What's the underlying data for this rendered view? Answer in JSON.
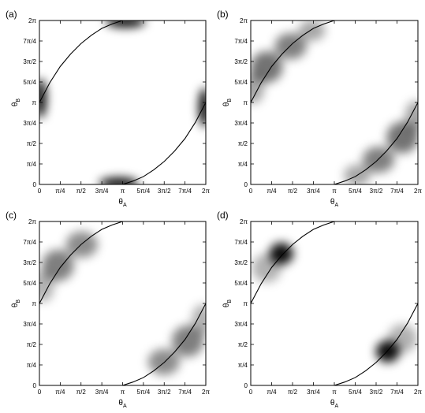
{
  "chart_data": [
    {
      "type": "heatmap",
      "panel_label": "(a)",
      "xlabel": "θA",
      "ylabel": "θB",
      "xlim": [
        0,
        6.2832
      ],
      "ylim": [
        0,
        6.2832
      ],
      "x_ticks": [
        "0",
        "π/4",
        "π/2",
        "3π/4",
        "π",
        "5π/4",
        "3π/2",
        "7π/4",
        "2π"
      ],
      "y_ticks": [
        "0",
        "π/4",
        "π/2",
        "3π/4",
        "π",
        "5π/4",
        "3π/2",
        "7π/4",
        "2π"
      ],
      "curve": {
        "branch_1": {
          "x": [
            0,
            0.3927,
            0.7854,
            1.1781,
            1.5708,
            1.9635,
            2.3562,
            2.7489,
            3.1416
          ],
          "y": [
            3.1416,
            3.9,
            4.52,
            5.0,
            5.4,
            5.72,
            5.98,
            6.15,
            6.2832
          ]
        },
        "branch_2": {
          "x": [
            3.1416,
            3.5343,
            3.927,
            4.3197,
            4.7124,
            5.1051,
            5.4978,
            5.8905,
            6.2832
          ],
          "y": [
            0,
            0.13,
            0.3,
            0.56,
            0.88,
            1.28,
            1.76,
            2.38,
            3.1416
          ]
        }
      },
      "density_peaks": [
        {
          "x": 0.05,
          "y": 3.3,
          "spread_x": 0.22,
          "spread_y": 0.75,
          "intensity": 0.95
        },
        {
          "x": 6.23,
          "y": 2.95,
          "spread_x": 0.22,
          "spread_y": 0.75,
          "intensity": 0.95
        },
        {
          "x": 3.0,
          "y": 0.05,
          "spread_x": 0.75,
          "spread_y": 0.22,
          "intensity": 0.95
        },
        {
          "x": 3.25,
          "y": 6.23,
          "spread_x": 0.75,
          "spread_y": 0.22,
          "intensity": 0.95
        }
      ]
    },
    {
      "type": "heatmap",
      "panel_label": "(b)",
      "xlabel": "θA",
      "ylabel": "θB",
      "xlim": [
        0,
        6.2832
      ],
      "ylim": [
        0,
        6.2832
      ],
      "x_ticks": [
        "0",
        "π/4",
        "π/2",
        "3π/4",
        "π",
        "5π/4",
        "3π/2",
        "7π/4",
        "2π"
      ],
      "y_ticks": [
        "0",
        "π/4",
        "π/2",
        "3π/4",
        "π",
        "5π/4",
        "3π/2",
        "7π/4",
        "2π"
      ],
      "curve": {
        "branch_1": {
          "x": [
            0,
            0.3927,
            0.7854,
            1.1781,
            1.5708,
            1.9635,
            2.3562,
            2.7489,
            3.1416
          ],
          "y": [
            3.1416,
            3.9,
            4.52,
            5.0,
            5.4,
            5.72,
            5.98,
            6.15,
            6.2832
          ]
        },
        "branch_2": {
          "x": [
            3.1416,
            3.5343,
            3.927,
            4.3197,
            4.7124,
            5.1051,
            5.4978,
            5.8905,
            6.2832
          ],
          "y": [
            0,
            0.13,
            0.3,
            0.56,
            0.88,
            1.28,
            1.76,
            2.38,
            3.1416
          ]
        }
      },
      "density_peaks": [
        {
          "x": 0.6,
          "y": 4.5,
          "spread_x": 0.6,
          "spread_y": 0.6,
          "intensity": 0.55
        },
        {
          "x": 1.5,
          "y": 5.3,
          "spread_x": 0.6,
          "spread_y": 0.5,
          "intensity": 0.5
        },
        {
          "x": 2.3,
          "y": 5.9,
          "spread_x": 0.5,
          "spread_y": 0.4,
          "intensity": 0.35
        },
        {
          "x": 0.1,
          "y": 3.7,
          "spread_x": 0.4,
          "spread_y": 0.6,
          "intensity": 0.35
        },
        {
          "x": 5.7,
          "y": 1.8,
          "spread_x": 0.6,
          "spread_y": 0.6,
          "intensity": 0.55
        },
        {
          "x": 4.8,
          "y": 0.95,
          "spread_x": 0.6,
          "spread_y": 0.5,
          "intensity": 0.5
        },
        {
          "x": 4.0,
          "y": 0.35,
          "spread_x": 0.5,
          "spread_y": 0.4,
          "intensity": 0.35
        },
        {
          "x": 6.2,
          "y": 2.6,
          "spread_x": 0.4,
          "spread_y": 0.6,
          "intensity": 0.35
        }
      ]
    },
    {
      "type": "heatmap",
      "panel_label": "(c)",
      "xlabel": "θA",
      "ylabel": "θB",
      "xlim": [
        0,
        6.2832
      ],
      "ylim": [
        0,
        6.2832
      ],
      "x_ticks": [
        "0",
        "π/4",
        "π/2",
        "3π/4",
        "π",
        "5π/4",
        "3π/2",
        "7π/4",
        "2π"
      ],
      "y_ticks": [
        "0",
        "π/4",
        "π/2",
        "3π/4",
        "π",
        "5π/4",
        "3π/2",
        "7π/4",
        "2π"
      ],
      "curve": {
        "branch_1": {
          "x": [
            0,
            0.3927,
            0.7854,
            1.1781,
            1.5708,
            1.9635,
            2.3562,
            2.7489,
            3.1416
          ],
          "y": [
            3.1416,
            3.9,
            4.52,
            5.0,
            5.4,
            5.72,
            5.98,
            6.15,
            6.2832
          ]
        },
        "branch_2": {
          "x": [
            3.1416,
            3.5343,
            3.927,
            4.3197,
            4.7124,
            5.1051,
            5.4978,
            5.8905,
            6.2832
          ],
          "y": [
            0,
            0.13,
            0.3,
            0.56,
            0.88,
            1.28,
            1.76,
            2.38,
            3.1416
          ]
        }
      },
      "density_peaks": [
        {
          "x": 0.7,
          "y": 4.6,
          "spread_x": 0.6,
          "spread_y": 0.6,
          "intensity": 0.5
        },
        {
          "x": 1.6,
          "y": 5.4,
          "spread_x": 0.6,
          "spread_y": 0.5,
          "intensity": 0.45
        },
        {
          "x": 0.15,
          "y": 3.8,
          "spread_x": 0.4,
          "spread_y": 0.6,
          "intensity": 0.3
        },
        {
          "x": 5.6,
          "y": 1.7,
          "spread_x": 0.6,
          "spread_y": 0.6,
          "intensity": 0.5
        },
        {
          "x": 4.7,
          "y": 0.9,
          "spread_x": 0.6,
          "spread_y": 0.5,
          "intensity": 0.45
        },
        {
          "x": 6.15,
          "y": 2.5,
          "spread_x": 0.4,
          "spread_y": 0.6,
          "intensity": 0.3
        }
      ]
    },
    {
      "type": "heatmap",
      "panel_label": "(d)",
      "xlabel": "θA",
      "ylabel": "θB",
      "xlim": [
        0,
        6.2832
      ],
      "ylim": [
        0,
        6.2832
      ],
      "x_ticks": [
        "0",
        "π/4",
        "π/2",
        "3π/4",
        "π",
        "5π/4",
        "3π/2",
        "7π/4",
        "2π"
      ],
      "y_ticks": [
        "0",
        "π/4",
        "π/2",
        "3π/4",
        "π",
        "5π/4",
        "3π/2",
        "7π/4",
        "2π"
      ],
      "curve": {
        "branch_1": {
          "x": [
            0,
            0.3927,
            0.7854,
            1.1781,
            1.5708,
            1.9635,
            2.3562,
            2.7489,
            3.1416
          ],
          "y": [
            3.1416,
            3.9,
            4.52,
            5.0,
            5.4,
            5.72,
            5.98,
            6.15,
            6.2832
          ]
        },
        "branch_2": {
          "x": [
            3.1416,
            3.5343,
            3.927,
            4.3197,
            4.7124,
            5.1051,
            5.4978,
            5.8905,
            6.2832
          ],
          "y": [
            0,
            0.13,
            0.3,
            0.56,
            0.88,
            1.28,
            1.76,
            2.38,
            3.1416
          ]
        }
      },
      "density_peaks": [
        {
          "x": 1.15,
          "y": 5.05,
          "spread_x": 0.45,
          "spread_y": 0.42,
          "intensity": 0.95
        },
        {
          "x": 0.6,
          "y": 4.5,
          "spread_x": 0.55,
          "spread_y": 0.55,
          "intensity": 0.3
        },
        {
          "x": 5.15,
          "y": 1.3,
          "spread_x": 0.45,
          "spread_y": 0.42,
          "intensity": 0.95
        },
        {
          "x": 5.7,
          "y": 1.8,
          "spread_x": 0.55,
          "spread_y": 0.55,
          "intensity": 0.3
        }
      ]
    }
  ]
}
